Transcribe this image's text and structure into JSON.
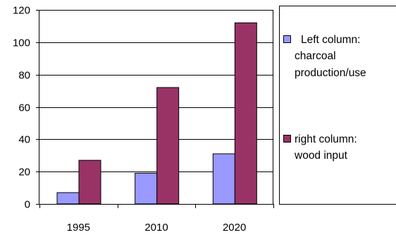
{
  "chart_data": {
    "type": "bar",
    "categories": [
      "1995",
      "2010",
      "2020"
    ],
    "series": [
      {
        "name": "Left column: charcoal production/use",
        "values": [
          7,
          19,
          31
        ],
        "color": "#9999ff"
      },
      {
        "name": "right column: wood input",
        "values": [
          27,
          72,
          112
        ],
        "color": "#993366"
      }
    ],
    "ylim": [
      0,
      120
    ],
    "yticks": [
      "0",
      "20",
      "40",
      "60",
      "80",
      "100",
      "120"
    ],
    "grid": true,
    "legend_placement": "right",
    "legend": {
      "left": [
        "Left column:",
        "charcoal",
        "production/use"
      ],
      "right": [
        "right column:",
        "wood input"
      ]
    }
  }
}
